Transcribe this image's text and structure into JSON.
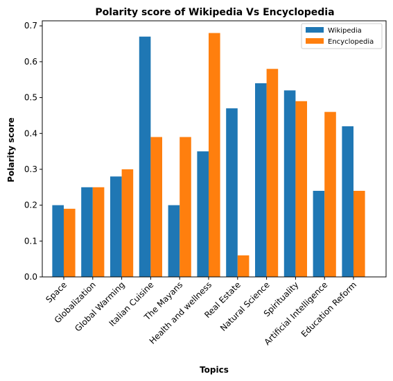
{
  "chart_data": {
    "type": "bar",
    "title": "Polarity score of Wikipedia Vs Encyclopedia",
    "xlabel": "Topics",
    "ylabel": "Polarity score",
    "categories": [
      "Space",
      "Globalization",
      "Global Warming",
      "Italian Cuisine",
      "The Mayans",
      "Health and wellness",
      "Real Estate",
      "Natural Science",
      "Spirituality",
      "Artificial Intelligence",
      "Education Reform"
    ],
    "series": [
      {
        "name": "Wikipedia",
        "color": "#1f77b4",
        "values": [
          0.2,
          0.25,
          0.28,
          0.67,
          0.2,
          0.35,
          0.47,
          0.54,
          0.52,
          0.24,
          0.42
        ]
      },
      {
        "name": "Encyclopedia",
        "color": "#ff7f0e",
        "values": [
          0.19,
          0.25,
          0.3,
          0.39,
          0.39,
          0.68,
          0.06,
          0.58,
          0.49,
          0.46,
          0.24
        ]
      }
    ],
    "yticks": [
      "0.0",
      "0.1",
      "0.2",
      "0.3",
      "0.4",
      "0.5",
      "0.6",
      "0.7"
    ],
    "ylim": [
      0,
      0.714
    ],
    "grid": false,
    "legend": "top-right"
  }
}
